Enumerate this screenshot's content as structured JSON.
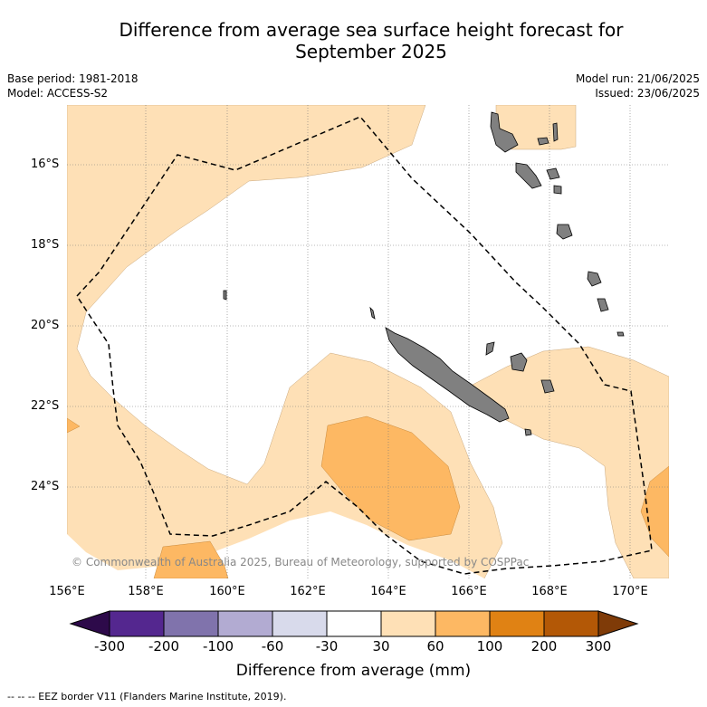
{
  "title": {
    "line1": "Difference from average sea surface height forecast for",
    "line2": "September 2025"
  },
  "meta": {
    "base_period": "Base period: 1981-2018",
    "model": "Model: ACCESS-S2",
    "model_run": "Model run: 21/06/2025",
    "issued": "Issued: 23/06/2025"
  },
  "axes": {
    "lat_labels": [
      "16°S",
      "18°S",
      "20°S",
      "22°S",
      "24°S"
    ],
    "lon_labels": [
      "156°E",
      "158°E",
      "160°E",
      "162°E",
      "164°E",
      "166°E",
      "168°E",
      "170°E"
    ]
  },
  "copyright": "© Commonwealth of Australia 2025, Bureau of Meteorology, supported by COSPPac",
  "colorbar": {
    "title": "Difference from average (mm)",
    "ticks": [
      "-300",
      "-200",
      "-100",
      "-60",
      "-30",
      "30",
      "60",
      "100",
      "200",
      "300"
    ],
    "colors": [
      "#2d0a4a",
      "#54278f",
      "#8073ac",
      "#b2abd2",
      "#d8daeb",
      "#ffffff",
      "#fee0b6",
      "#fdb863",
      "#e08214",
      "#b35806",
      "#7f3b08"
    ]
  },
  "footer": "--  --  -- EEZ border V11 (Flanders Marine Institute, 2019)."
}
